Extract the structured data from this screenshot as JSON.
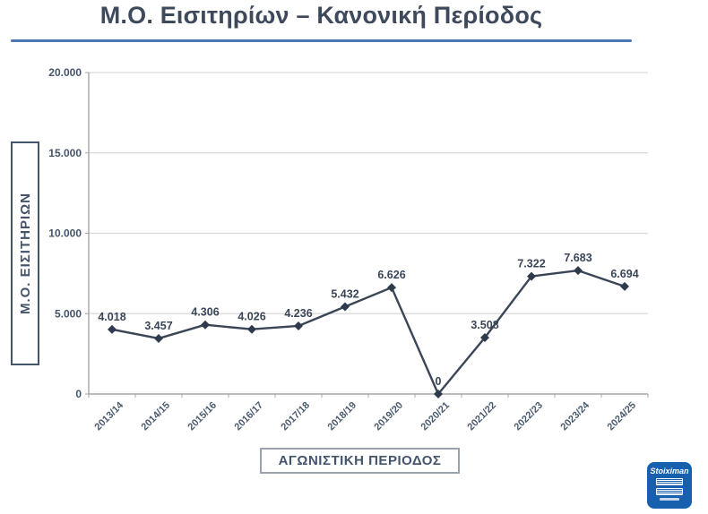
{
  "page": {
    "title": "Μ.Ο. Εισιτηρίων – Κανονική Περίοδος"
  },
  "chart_data": {
    "type": "line",
    "title": "Μ.Ο. Εισιτηρίων – Κανονική Περίοδος",
    "xlabel": "ΑΓΩΝΙΣΤΙΚΗ ΠΕΡΙΟΔΟΣ",
    "ylabel": "Μ.Ο. ΕΙΣΙΤΗΡΙΩΝ",
    "categories": [
      "2013/14",
      "2014/15",
      "2015/16",
      "2016/17",
      "2017/18",
      "2018/19",
      "2019/20",
      "2020/21",
      "2021/22",
      "2022/23",
      "2023/24",
      "2024/25"
    ],
    "values": [
      4018,
      3457,
      4306,
      4026,
      4236,
      5432,
      6626,
      0,
      3508,
      7322,
      7683,
      6694
    ],
    "data_labels": [
      "4.018",
      "3.457",
      "4.306",
      "4.026",
      "4.236",
      "5.432",
      "6.626",
      "0",
      "3.508",
      "7.322",
      "7.683",
      "6.694"
    ],
    "ylim": [
      0,
      20000
    ],
    "y_ticks": [
      {
        "value": 0,
        "label": "0"
      },
      {
        "value": 5000,
        "label": "5.000"
      },
      {
        "value": 10000,
        "label": "10.000"
      },
      {
        "value": 15000,
        "label": "15.000"
      },
      {
        "value": 20000,
        "label": "20.000"
      }
    ],
    "grid": true,
    "legend": "none",
    "marker": "diamond",
    "colors": {
      "line": "#3a4657",
      "marker": "#2f3b4c",
      "grid": "#d9d9d9",
      "axis": "#a6a6a6",
      "tick_label": "#44546a",
      "title_underline": "#4c76b2"
    }
  },
  "logo": {
    "brand": "Stoiximan",
    "bg_color": "#1660ae"
  }
}
